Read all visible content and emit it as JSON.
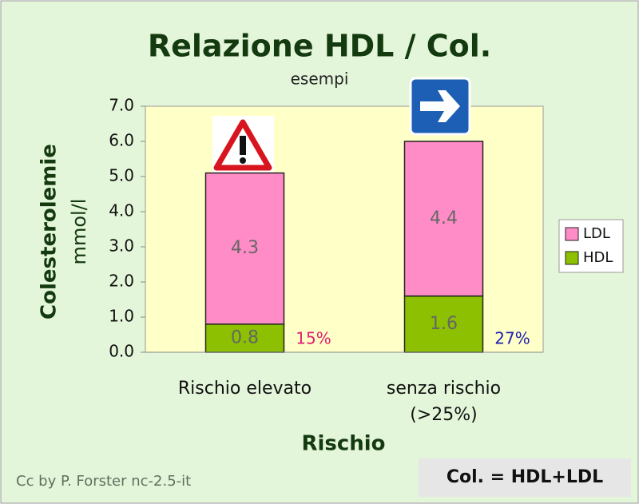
{
  "chart_data": {
    "type": "stacked-bar",
    "title": "Relazione HDL / Col.",
    "subtitle": "esempi",
    "ylabel": "Colesterolemie",
    "ylabel_unit": "mmol/l",
    "xlabel": "Rischio",
    "categories": [
      "Rischio elevato",
      "senza rischio (>25%)"
    ],
    "series": [
      {
        "name": "HDL",
        "color": "#8cc000",
        "values": [
          0.8,
          1.6
        ]
      },
      {
        "name": "LDL",
        "color": "#ff8cc6",
        "values": [
          4.3,
          4.4
        ]
      }
    ],
    "annotations": [
      {
        "text": "15%",
        "color": "#e0206f"
      },
      {
        "text": "27%",
        "color": "#2020b0"
      }
    ],
    "ylim": [
      0,
      7
    ],
    "yticks": [
      {
        "value": 0,
        "label": "0.0"
      },
      {
        "value": 1,
        "label": "1.0"
      },
      {
        "value": 2,
        "label": "2.0"
      },
      {
        "value": 3,
        "label": "3.0"
      },
      {
        "value": 4,
        "label": "4.0"
      },
      {
        "value": 5,
        "label": "5.0"
      },
      {
        "value": 6,
        "label": "6.0"
      },
      {
        "value": 7,
        "label": "7.0"
      }
    ],
    "legend": "right",
    "credit": "Cc by P. Forster nc-2.5-it",
    "formula": "Col. = HDL+LDL"
  }
}
